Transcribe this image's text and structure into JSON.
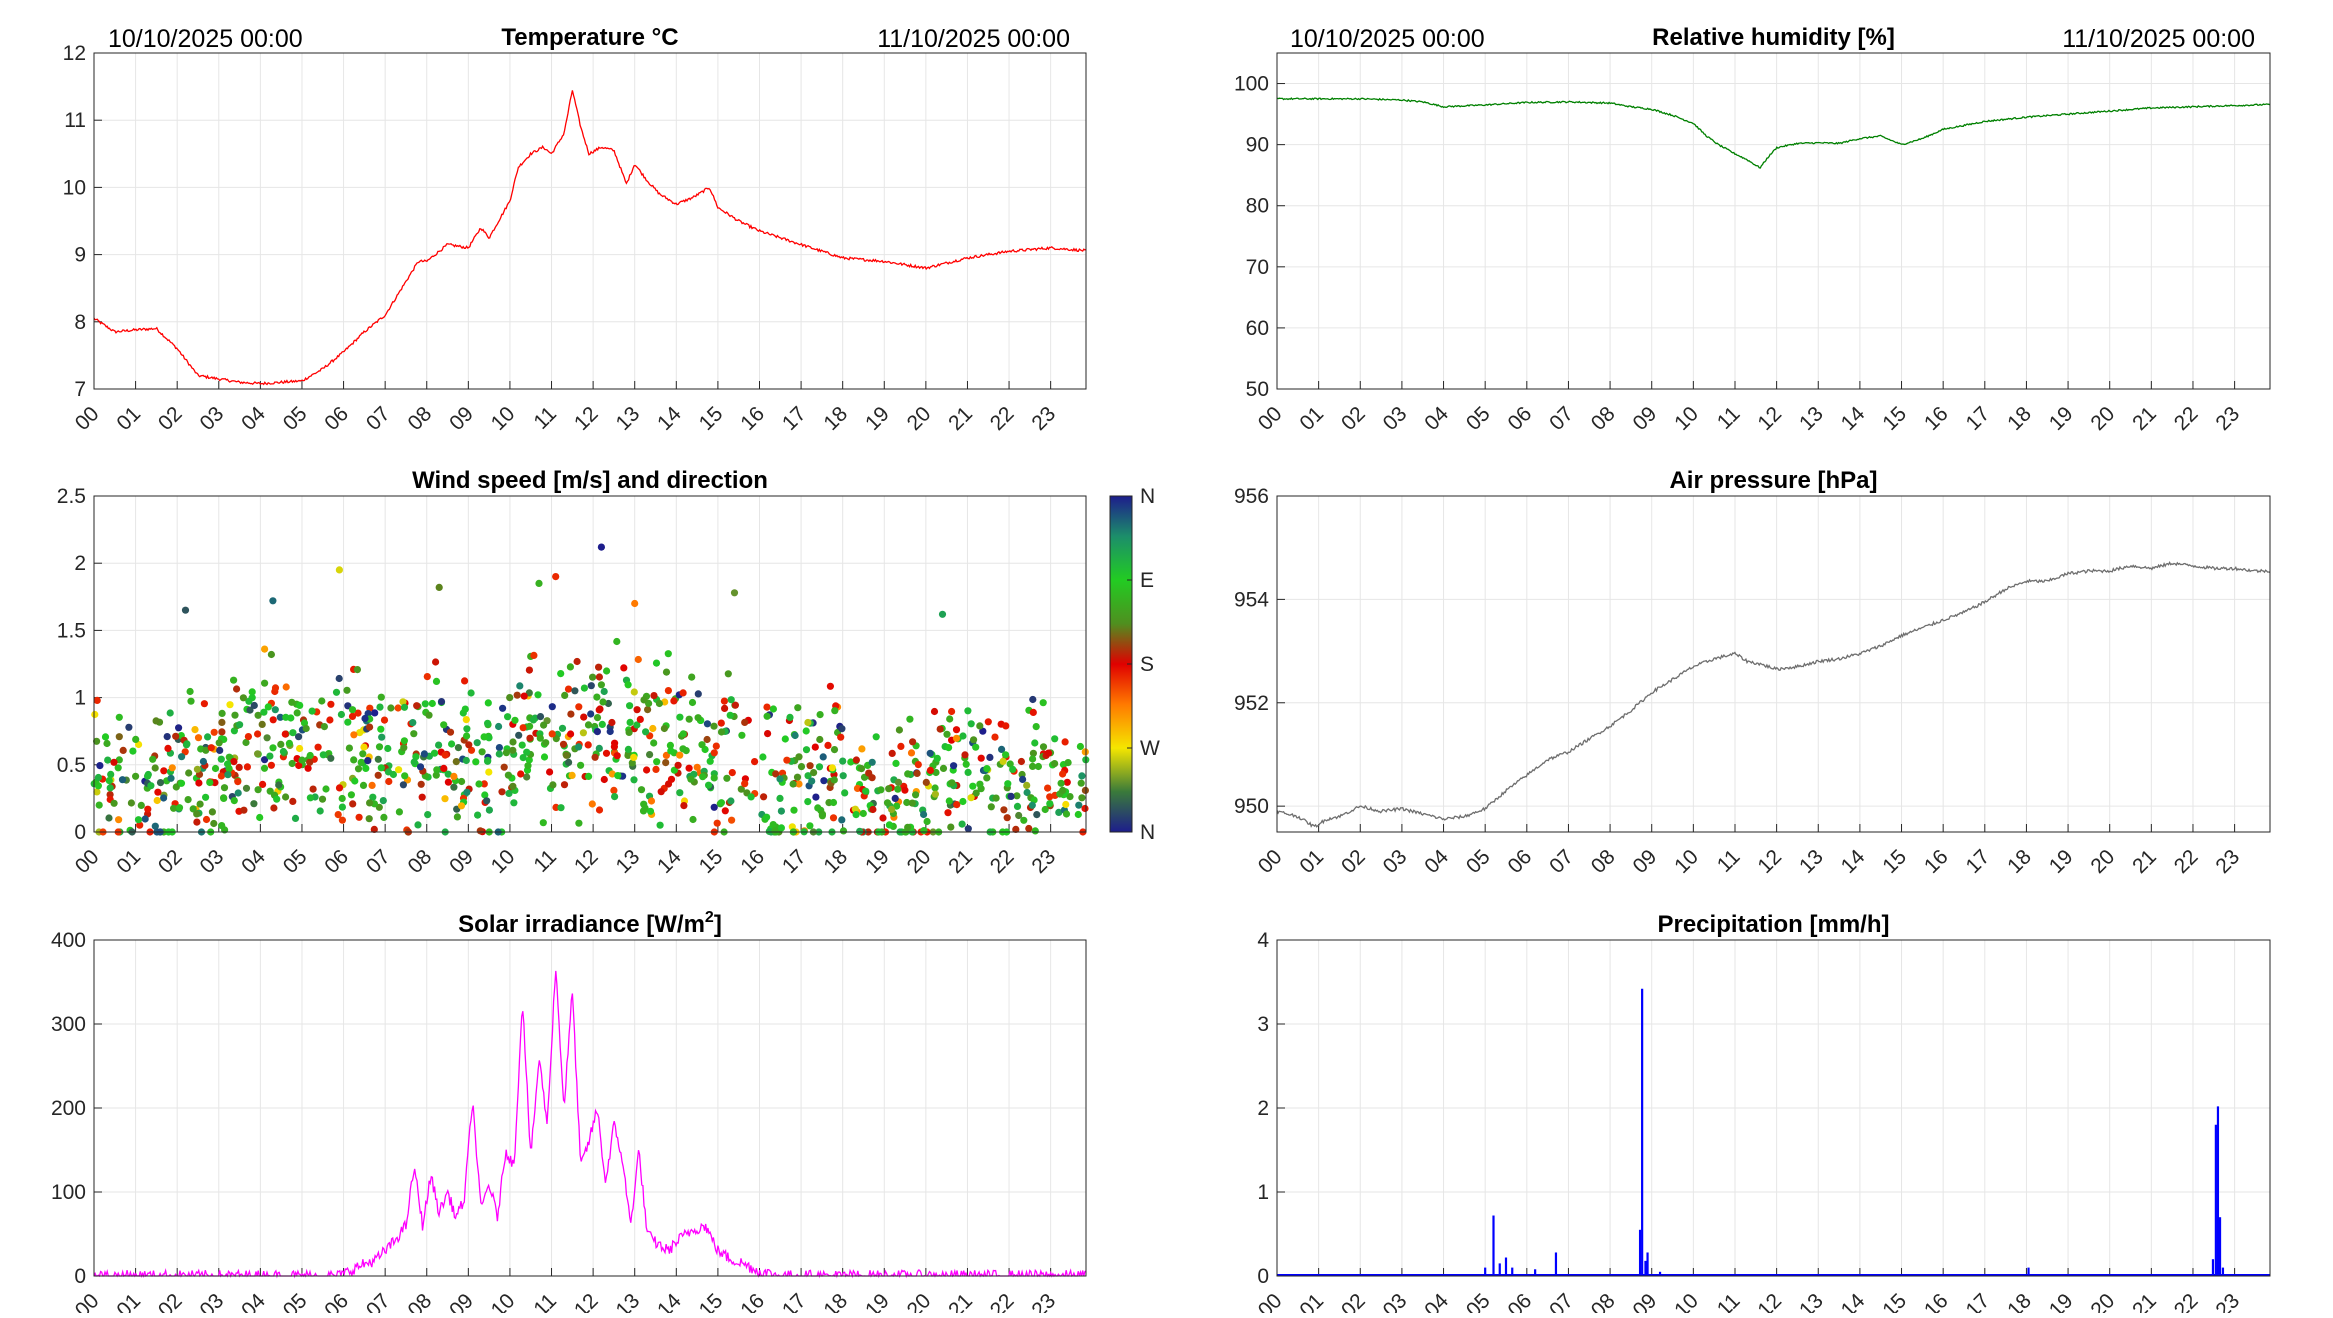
{
  "date_start": "10/10/2025 00:00",
  "date_end": "11/10/2025 00:00",
  "chart_data": [
    {
      "id": "temperature",
      "type": "line",
      "title": "Temperature °C",
      "color": "#ff0000",
      "ylim": [
        7,
        12
      ],
      "yticks": [
        7,
        8,
        9,
        10,
        11,
        12
      ],
      "xlabels": [
        "00",
        "01",
        "02",
        "03",
        "04",
        "05",
        "06",
        "07",
        "08",
        "09",
        "10",
        "11",
        "12",
        "13",
        "14",
        "15",
        "16",
        "17",
        "18",
        "19",
        "20",
        "21",
        "22",
        "23"
      ],
      "series_hours": [
        0,
        0.5,
        1,
        1.5,
        2,
        2.5,
        3,
        3.5,
        4,
        4.5,
        5,
        5.5,
        6,
        6.5,
        7,
        7.5,
        7.8,
        8,
        8.5,
        9,
        9.3,
        9.5,
        10,
        10.2,
        10.5,
        10.8,
        11,
        11.3,
        11.5,
        11.7,
        11.9,
        12.2,
        12.5,
        12.8,
        13,
        13.3,
        13.6,
        14,
        14.4,
        14.8,
        15,
        15.5,
        16,
        17,
        18,
        19,
        20,
        21,
        22,
        23,
        24
      ],
      "series_values": [
        8.05,
        7.85,
        7.88,
        7.9,
        7.6,
        7.2,
        7.15,
        7.1,
        7.08,
        7.1,
        7.12,
        7.3,
        7.55,
        7.85,
        8.1,
        8.6,
        8.9,
        8.9,
        9.15,
        9.1,
        9.4,
        9.25,
        9.8,
        10.3,
        10.5,
        10.6,
        10.5,
        10.8,
        11.45,
        10.9,
        10.5,
        10.6,
        10.55,
        10.05,
        10.35,
        10.1,
        9.9,
        9.75,
        9.85,
        10.0,
        9.7,
        9.5,
        9.35,
        9.15,
        8.95,
        8.9,
        8.8,
        8.95,
        9.05,
        9.1,
        9.05
      ]
    },
    {
      "id": "humidity",
      "type": "line",
      "title": "Relative humidity [%]",
      "color": "#008000",
      "ylim": [
        50,
        105
      ],
      "yticks": [
        50,
        60,
        70,
        80,
        90,
        100
      ],
      "xlabels": [
        "00",
        "01",
        "02",
        "03",
        "04",
        "05",
        "06",
        "07",
        "08",
        "09",
        "10",
        "11",
        "12",
        "13",
        "14",
        "15",
        "16",
        "17",
        "18",
        "19",
        "20",
        "21",
        "22",
        "23"
      ],
      "series_hours": [
        0,
        1,
        2,
        3,
        3.5,
        4,
        5,
        6,
        7,
        8,
        8.5,
        9,
        9.5,
        10,
        10.3,
        10.6,
        11,
        11.3,
        11.6,
        11.8,
        12,
        12.5,
        13,
        13.5,
        14,
        14.5,
        15,
        15.5,
        16,
        17,
        18,
        19,
        20,
        21,
        22,
        23,
        24
      ],
      "series_values": [
        97.5,
        97.5,
        97.5,
        97.3,
        97,
        96.2,
        96.5,
        96.9,
        97,
        96.8,
        96.2,
        95.8,
        94.8,
        93.5,
        91.5,
        90,
        88.5,
        87.5,
        86.2,
        88,
        89.5,
        90.2,
        90.3,
        90.2,
        91,
        91.4,
        90,
        91,
        92.5,
        93.8,
        94.5,
        95,
        95.5,
        96,
        96.2,
        96.4,
        96.6
      ]
    },
    {
      "id": "wind",
      "type": "scatter",
      "title": "Wind speed [m/s] and direction",
      "ylim": [
        0,
        2.5
      ],
      "yticks": [
        "0",
        "0.5",
        "1",
        "1.5",
        "2",
        "2.5"
      ],
      "xlabels": [
        "00",
        "01",
        "02",
        "03",
        "04",
        "05",
        "06",
        "07",
        "08",
        "09",
        "10",
        "11",
        "12",
        "13",
        "14",
        "15",
        "16",
        "17",
        "18",
        "19",
        "20",
        "21",
        "22",
        "23"
      ],
      "colorbar_labels": [
        "N",
        "W",
        "S",
        "E",
        "N"
      ],
      "highlight_points": [
        [
          12.2,
          2.12
        ],
        [
          5.9,
          1.95
        ],
        [
          11.1,
          1.9
        ],
        [
          10.7,
          1.85
        ],
        [
          4.3,
          1.72
        ],
        [
          15.4,
          1.78
        ],
        [
          13.0,
          1.7
        ],
        [
          8.3,
          1.82
        ],
        [
          20.4,
          1.62
        ],
        [
          2.2,
          1.65
        ]
      ]
    },
    {
      "id": "pressure",
      "type": "line",
      "title": "Air pressure [hPa]",
      "color": "#6e6e6e",
      "ylim": [
        949.5,
        956
      ],
      "yticks": [
        950,
        952,
        954,
        956
      ],
      "xlabels": [
        "00",
        "01",
        "02",
        "03",
        "04",
        "05",
        "06",
        "07",
        "08",
        "09",
        "10",
        "11",
        "12",
        "13",
        "14",
        "15",
        "16",
        "17",
        "18",
        "19",
        "20",
        "21",
        "22",
        "23"
      ],
      "series_hours": [
        0,
        0.5,
        0.9,
        1.2,
        1.5,
        2,
        2.5,
        3,
        3.5,
        4,
        4.5,
        5,
        5.5,
        6,
        6.5,
        7,
        7.5,
        8,
        8.5,
        9,
        9.5,
        10,
        10.5,
        11,
        11.3,
        11.6,
        12,
        12.5,
        13,
        13.5,
        14,
        14.5,
        15,
        15.5,
        16,
        16.5,
        17,
        17.5,
        18,
        18.5,
        19,
        19.5,
        20,
        20.5,
        21,
        21.5,
        22,
        22.5,
        23,
        23.5,
        24
      ],
      "series_values": [
        949.9,
        949.8,
        949.6,
        949.75,
        949.8,
        950.0,
        949.9,
        949.95,
        949.85,
        949.75,
        949.8,
        949.95,
        950.3,
        950.6,
        950.9,
        951.05,
        951.3,
        951.55,
        951.85,
        952.2,
        952.45,
        952.7,
        952.85,
        952.95,
        952.8,
        952.75,
        952.65,
        952.7,
        952.8,
        952.85,
        952.95,
        953.1,
        953.3,
        953.45,
        953.6,
        953.75,
        953.95,
        954.2,
        954.35,
        954.35,
        954.5,
        954.55,
        954.55,
        954.65,
        954.6,
        954.7,
        954.65,
        954.6,
        954.6,
        954.55,
        954.55
      ]
    },
    {
      "id": "solar",
      "type": "line",
      "title": "Solar irradiance [W/m",
      "title_superscript": "2",
      "title_suffix": "]",
      "color": "#ff00ff",
      "ylim": [
        0,
        400
      ],
      "yticks": [
        0,
        100,
        200,
        300,
        400
      ],
      "xlabels": [
        "00",
        "01",
        "02",
        "03",
        "04",
        "05",
        "06",
        "07",
        "08",
        "09",
        "10",
        "11",
        "12",
        "13",
        "14",
        "15",
        "16",
        "17",
        "18",
        "19",
        "20",
        "21",
        "22",
        "23"
      ],
      "series_hours": [
        0,
        5,
        5.9,
        6.3,
        6.8,
        7.2,
        7.5,
        7.7,
        7.9,
        8.1,
        8.3,
        8.5,
        8.7,
        8.9,
        9.1,
        9.3,
        9.5,
        9.7,
        9.9,
        10.1,
        10.3,
        10.5,
        10.7,
        10.9,
        11.1,
        11.3,
        11.5,
        11.7,
        11.9,
        12.1,
        12.3,
        12.5,
        12.7,
        12.9,
        13.1,
        13.3,
        13.5,
        13.8,
        14.1,
        14.4,
        14.7,
        15.0,
        15.3,
        15.6,
        16.0,
        16.5,
        24
      ],
      "series_values": [
        0,
        0,
        0,
        10,
        20,
        40,
        60,
        130,
        60,
        120,
        75,
        100,
        70,
        90,
        210,
        80,
        110,
        70,
        150,
        130,
        330,
        140,
        260,
        180,
        370,
        200,
        340,
        130,
        160,
        200,
        110,
        180,
        140,
        60,
        150,
        50,
        40,
        30,
        45,
        55,
        60,
        30,
        20,
        15,
        5,
        0,
        0
      ]
    },
    {
      "id": "precipitation",
      "type": "bar",
      "title": "Precipitation [mm/h]",
      "color": "#0000ff",
      "ylim": [
        0,
        4
      ],
      "yticks": [
        0,
        1,
        2,
        3,
        4
      ],
      "xlabels": [
        "00",
        "01",
        "02",
        "03",
        "04",
        "05",
        "06",
        "07",
        "08",
        "09",
        "10",
        "11",
        "12",
        "13",
        "14",
        "15",
        "16",
        "17",
        "18",
        "19",
        "20",
        "21",
        "22",
        "23"
      ],
      "spike_hours": [
        5.0,
        5.2,
        5.35,
        5.5,
        5.65,
        6.2,
        6.7,
        8.72,
        8.77,
        8.85,
        8.9,
        9.2,
        18.05,
        22.48,
        22.55,
        22.6,
        22.65,
        22.72
      ],
      "spike_values": [
        0.1,
        0.72,
        0.15,
        0.22,
        0.1,
        0.08,
        0.28,
        0.55,
        3.42,
        0.18,
        0.28,
        0.05,
        0.1,
        0.2,
        1.8,
        2.02,
        0.7,
        0.1
      ]
    }
  ]
}
